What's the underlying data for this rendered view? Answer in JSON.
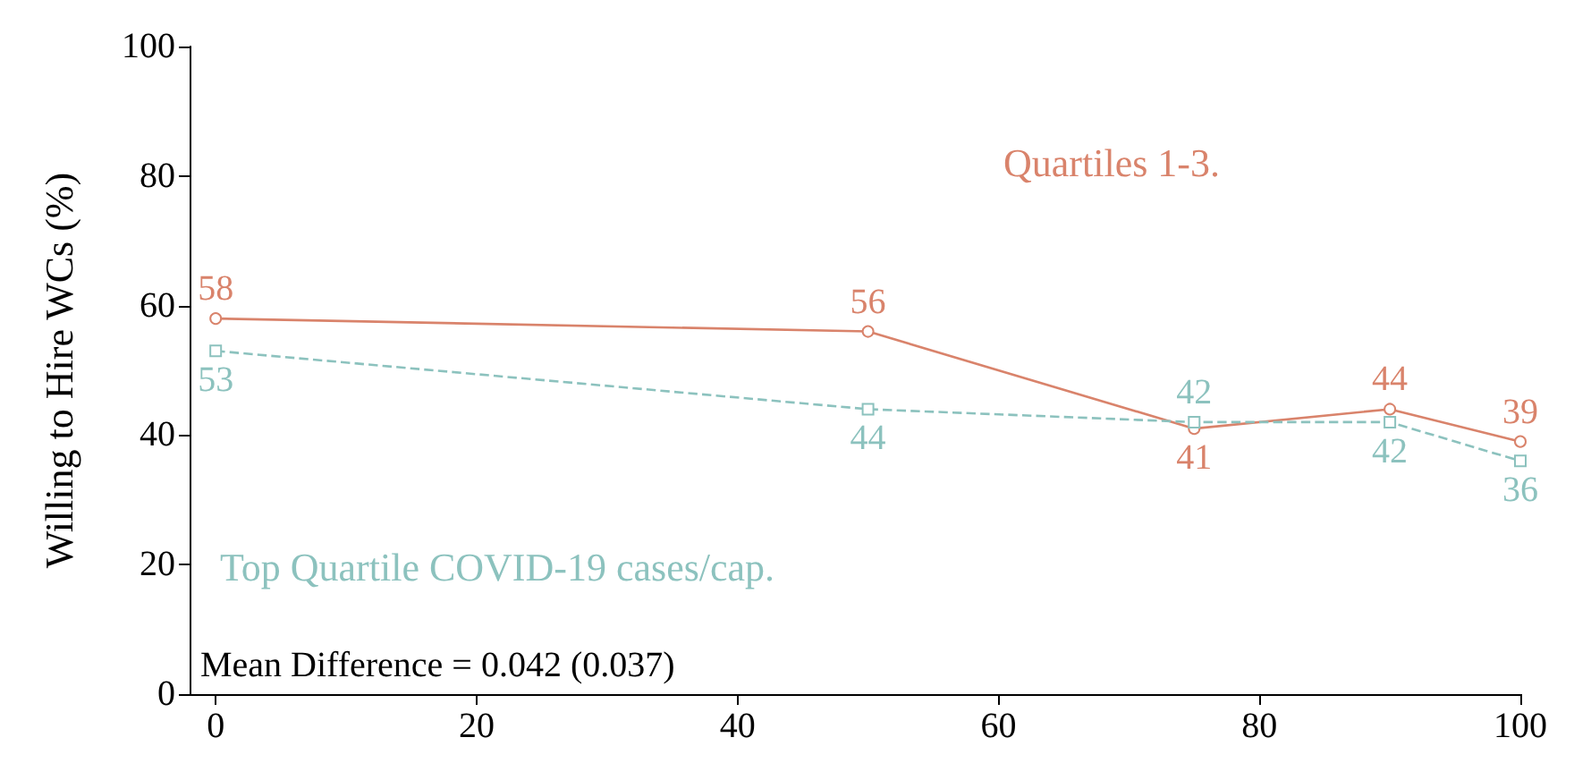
{
  "chart_data": {
    "type": "line",
    "ylabel": "Willing to Hire WCs (%)",
    "x": [
      0,
      50,
      75,
      90,
      100
    ],
    "series": [
      {
        "name": "Quartiles 1-3.",
        "color": "#d9836b",
        "values": [
          58,
          56,
          41,
          44,
          39
        ],
        "marker": "circle",
        "line_style": "solid"
      },
      {
        "name": "Top Quartile COVID-19 cases/cap.",
        "color": "#8cc2be",
        "values": [
          53,
          44,
          42,
          42,
          36
        ],
        "marker": "square",
        "line_style": "dashed"
      }
    ],
    "xlim": [
      -2,
      100
    ],
    "xticks": [
      0,
      20,
      40,
      60,
      80,
      100
    ],
    "ylim": [
      0,
      100
    ],
    "yticks": [
      0,
      20,
      40,
      60,
      80,
      100
    ],
    "grid": false,
    "legend": false,
    "data_labels": true,
    "annotations": [
      "Mean Difference = 0.042 (0.037)"
    ]
  }
}
